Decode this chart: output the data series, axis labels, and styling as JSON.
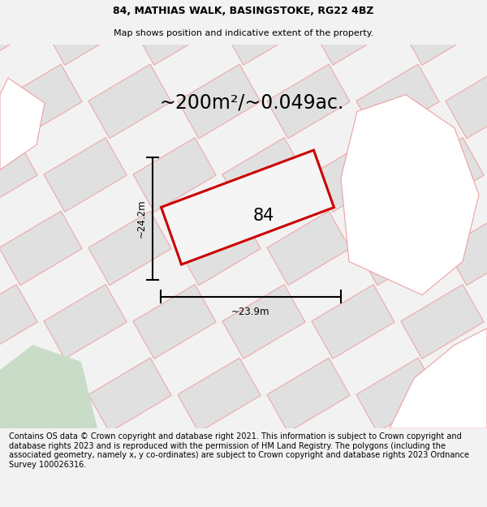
{
  "title_line1": "84, MATHIAS WALK, BASINGSTOKE, RG22 4BZ",
  "title_line2": "Map shows position and indicative extent of the property.",
  "area_text": "~200m²/~0.049ac.",
  "label_84": "84",
  "dim_width": "~23.9m",
  "dim_height": "~24.2m",
  "footer_text": "Contains OS data © Crown copyright and database right 2021. This information is subject to Crown copyright and database rights 2023 and is reproduced with the permission of HM Land Registry. The polygons (including the associated geometry, namely x, y co-ordinates) are subject to Crown copyright and database rights 2023 Ordnance Survey 100026316.",
  "bg_color": "#f2f2f2",
  "map_bg": "#ffffff",
  "gray_fill": "#e0e0e0",
  "gray_edge": "#b8b8b8",
  "pink_edge": "#f0a0a0",
  "red_color": "#cc0000",
  "green_color": "#c8dcc8",
  "title_fontsize": 9.0,
  "subtitle_fontsize": 8.0,
  "area_fontsize": 17,
  "label_fontsize": 15,
  "dim_fontsize": 8.5,
  "footer_fontsize": 7.0
}
